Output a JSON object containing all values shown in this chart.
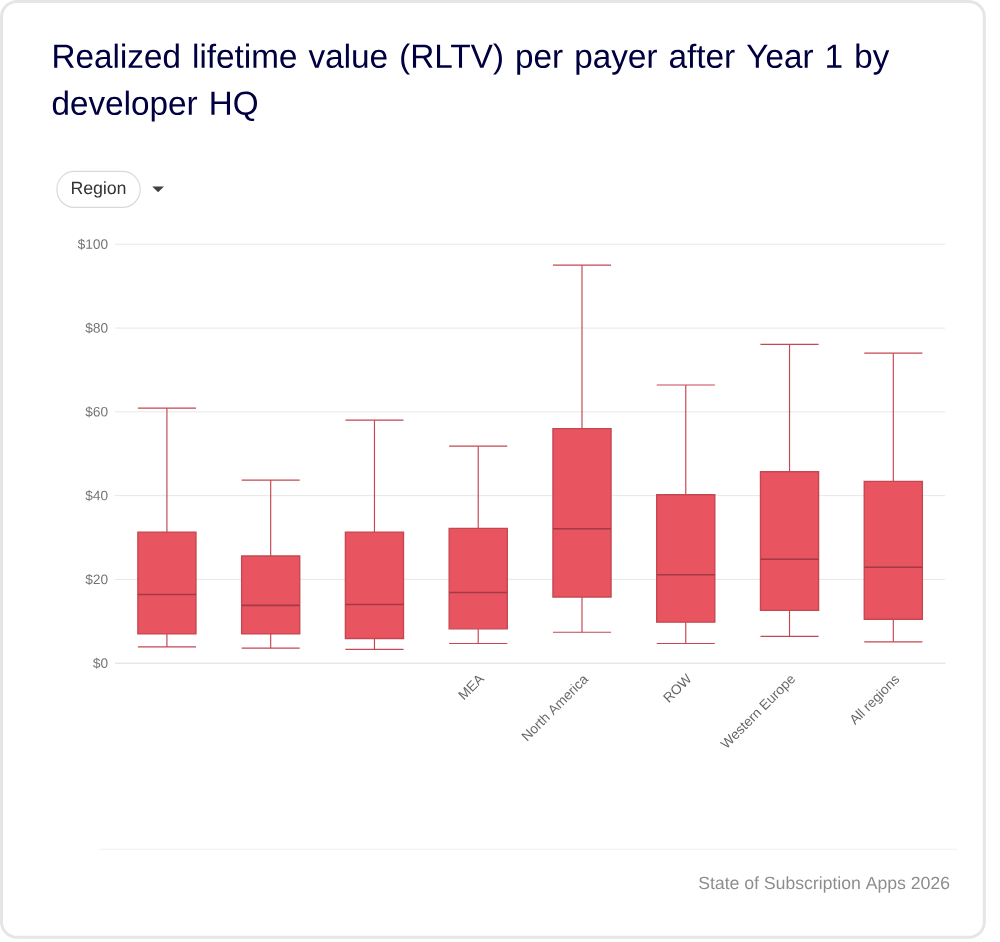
{
  "chart_data": {
    "type": "box",
    "title": "Realized lifetime value (RLTV) per payer after Year 1 by developer HQ",
    "categories": [
      null,
      null,
      null,
      "MEA",
      "North America",
      "ROW",
      "Western Europe",
      "All regions"
    ],
    "boxes": [
      {
        "low": 3.9,
        "q1": 7.0,
        "median": 16.4,
        "q3": 31.3,
        "high": 60.9
      },
      {
        "low": 3.6,
        "q1": 7.0,
        "median": 13.8,
        "q3": 25.6,
        "high": 43.7
      },
      {
        "low": 3.3,
        "q1": 5.9,
        "median": 14.0,
        "q3": 31.3,
        "high": 58.0
      },
      {
        "low": 4.7,
        "q1": 8.2,
        "median": 16.9,
        "q3": 32.2,
        "high": 51.8
      },
      {
        "low": 7.4,
        "q1": 15.8,
        "median": 32.1,
        "q3": 56.0,
        "high": 95.0
      },
      {
        "low": 4.7,
        "q1": 9.8,
        "median": 21.1,
        "q3": 40.2,
        "high": 66.4
      },
      {
        "low": 6.4,
        "q1": 12.6,
        "median": 24.8,
        "q3": 45.7,
        "high": 76.1
      },
      {
        "low": 5.1,
        "q1": 10.5,
        "median": 22.9,
        "q3": 43.4,
        "high": 74.0
      }
    ],
    "color": "#e85460",
    "ylim": [
      0,
      100
    ],
    "yticks": [
      {
        "value": 0,
        "label": "$0"
      },
      {
        "value": 20,
        "label": "$20"
      },
      {
        "value": 40,
        "label": "$40"
      },
      {
        "value": 60,
        "label": "$60"
      },
      {
        "value": 80,
        "label": "$80"
      },
      {
        "value": 100,
        "label": "$100"
      }
    ],
    "grid": "y",
    "annotations": [
      "Region",
      "State of Subscription Apps 2026"
    ]
  }
}
